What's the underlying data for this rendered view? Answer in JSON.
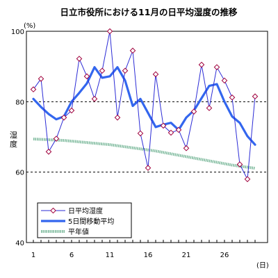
{
  "chart_data": {
    "type": "line",
    "title": "日立市役所における11月の日平均湿度の推移",
    "ylabel": "湿度",
    "yunit": "(%)",
    "xunit": "(日)",
    "ylim": [
      40,
      100
    ],
    "yticks": [
      40,
      60,
      80,
      100
    ],
    "xlim": [
      1,
      30
    ],
    "xticks": [
      1,
      6,
      11,
      16,
      21,
      26
    ],
    "dashed_gridlines": [
      60,
      80
    ],
    "legend_position": "bottom-left",
    "x": [
      1,
      2,
      3,
      4,
      5,
      6,
      7,
      8,
      9,
      10,
      11,
      12,
      13,
      14,
      15,
      16,
      17,
      18,
      19,
      20,
      21,
      22,
      23,
      24,
      25,
      26,
      27,
      28,
      29,
      30
    ],
    "series": [
      {
        "name": "日平均湿度",
        "style": "line-diamond",
        "color": "#2b2bd6",
        "marker_color": "#a0003c",
        "values": [
          83.5,
          86.5,
          65.8,
          69.5,
          75.5,
          77.5,
          92.2,
          87.2,
          80.8,
          88.8,
          100,
          75.5,
          88.8,
          94.5,
          71.0,
          61.2,
          87.8,
          73.2,
          71.2,
          72.0,
          66.8,
          77.2,
          90.5,
          78.2,
          89.8,
          86.0,
          81.2,
          62.2,
          58.0,
          81.5
        ]
      },
      {
        "name": "5日間移動平均",
        "style": "thick-line",
        "color": "#3366ee",
        "values": [
          80.8,
          78.5,
          76.5,
          75.0,
          75.8,
          80.0,
          82.5,
          85.2,
          89.8,
          86.8,
          87.2,
          89.8,
          86.0,
          78.8,
          80.8,
          76.8,
          72.8,
          73.5,
          74.0,
          72.0,
          75.5,
          77.5,
          81.0,
          84.5,
          85.0,
          80.0,
          75.8,
          74.0,
          70.2,
          67.8
        ]
      },
      {
        "name": "平年値",
        "style": "dotted-band",
        "color": "#7ab89a",
        "values": [
          69.4,
          69.3,
          69.2,
          69.1,
          69.0,
          68.8,
          68.6,
          68.4,
          68.2,
          68.0,
          67.8,
          67.5,
          67.2,
          66.9,
          66.6,
          66.3,
          66.0,
          65.6,
          65.2,
          64.8,
          64.4,
          64.0,
          63.6,
          63.2,
          62.8,
          62.4,
          62.0,
          61.7,
          61.4,
          61.1
        ]
      }
    ]
  }
}
